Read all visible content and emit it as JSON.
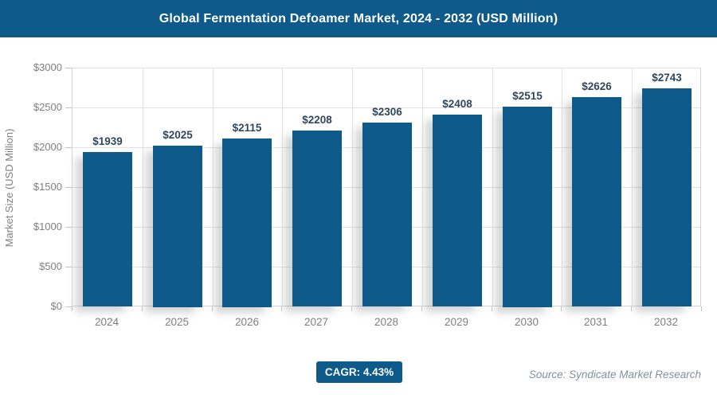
{
  "header": {
    "title": "Global Fermentation Defoamer Market, 2024 - 2032 (USD Million)"
  },
  "chart_data": {
    "type": "bar",
    "title": "Global Fermentation Defoamer Market, 2024 - 2032 (USD Million)",
    "categories": [
      "2024",
      "2025",
      "2026",
      "2027",
      "2028",
      "2029",
      "2030",
      "2031",
      "2032"
    ],
    "values": [
      1939,
      2025,
      2115,
      2208,
      2306,
      2408,
      2515,
      2626,
      2743
    ],
    "value_labels": [
      "$1939",
      "$2025",
      "$2115",
      "$2208",
      "$2306",
      "$2408",
      "$2515",
      "$2626",
      "$2743"
    ],
    "xlabel": "",
    "ylabel": "Market Size (USD Million)",
    "ylim": [
      0,
      3000
    ],
    "ytick_interval": 500,
    "ytick_labels": [
      "$0",
      "$500",
      "$1000",
      "$1500",
      "$2000",
      "$2500",
      "$3000"
    ],
    "grid": true,
    "legend": "none",
    "bar_color": "#0e5a8b"
  },
  "footer": {
    "cagr_label": "CAGR: 4.43%",
    "source": "Source: Syndicate Market Research"
  },
  "colors": {
    "banner_bg": "#0e5a8b",
    "bar": "#0e5a8b",
    "value_label": "#31475c",
    "tick_label": "#7f7f7f",
    "gridline": "#e2e2e2",
    "source_text": "#7f929d"
  }
}
